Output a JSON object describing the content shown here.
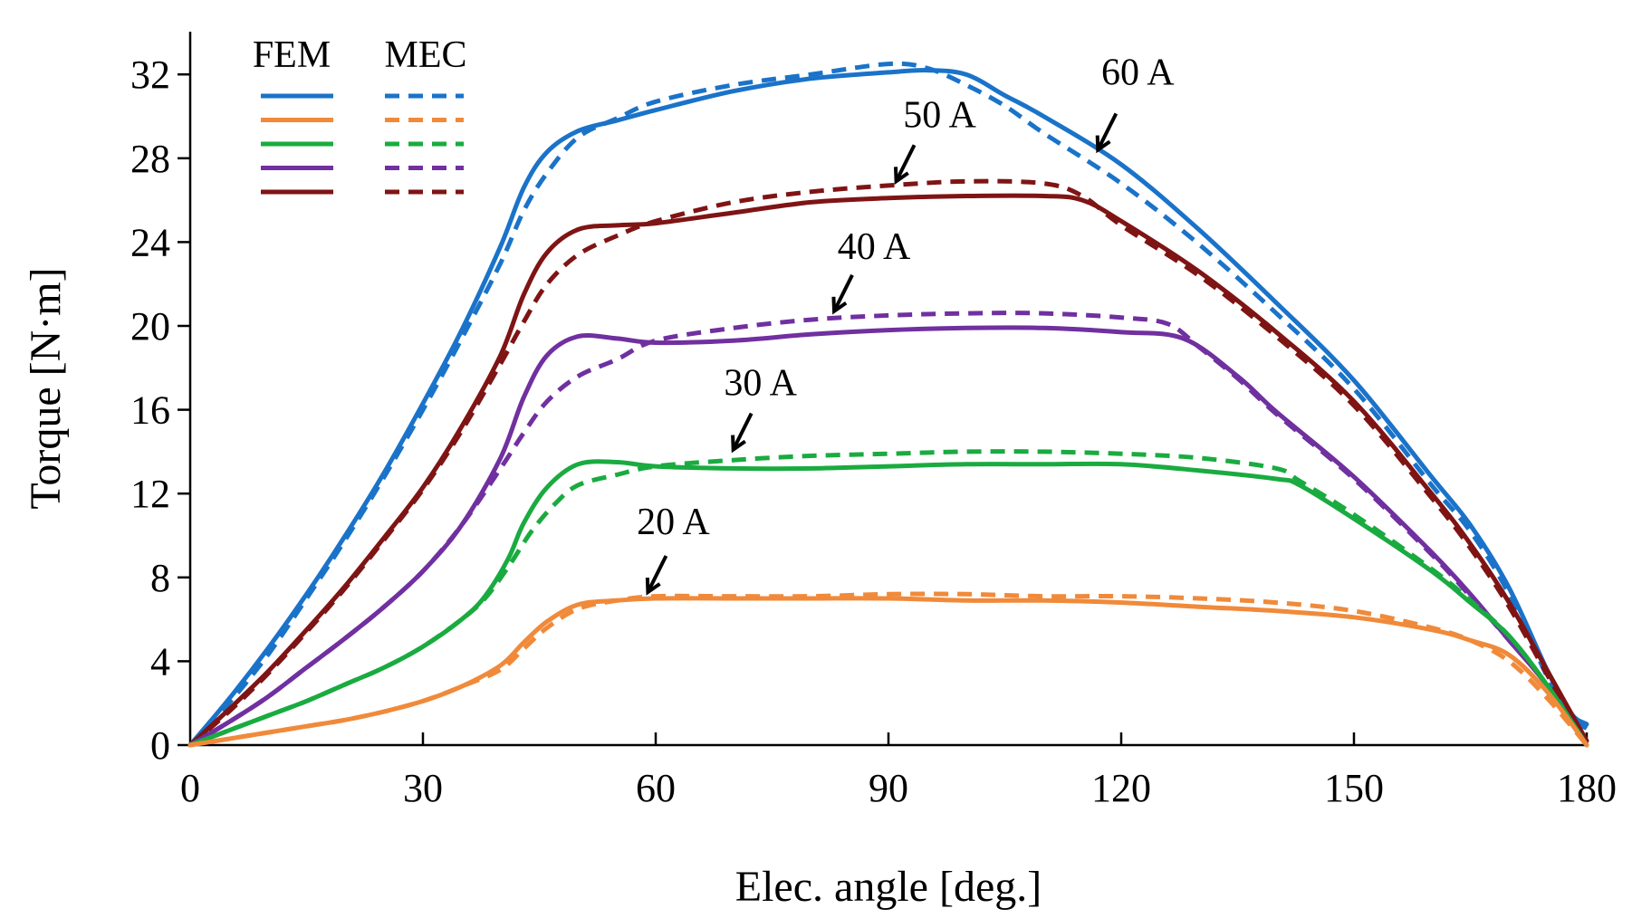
{
  "chart_data": {
    "type": "line",
    "title": "",
    "xlabel": "Elec. angle [deg.]",
    "ylabel": "Torque [N·m]",
    "xlim": [
      0,
      180
    ],
    "ylim": [
      0,
      34
    ],
    "xticks": [
      0,
      30,
      60,
      90,
      120,
      150,
      180
    ],
    "yticks": [
      0,
      4,
      8,
      12,
      16,
      20,
      24,
      28,
      32
    ],
    "grid": false,
    "legend": {
      "position": "top-left",
      "headers": [
        "FEM",
        "MEC"
      ]
    },
    "series": [
      {
        "name": "60 A FEM",
        "method": "FEM",
        "current": "60 A",
        "color": "#1a73c9",
        "style": "solid",
        "points": [
          [
            0,
            0
          ],
          [
            5,
            2.2
          ],
          [
            10,
            4.6
          ],
          [
            15,
            7.2
          ],
          [
            20,
            10
          ],
          [
            25,
            13
          ],
          [
            30,
            16.3
          ],
          [
            35,
            19.8
          ],
          [
            40,
            23.8
          ],
          [
            43,
            26.6
          ],
          [
            46,
            28.3
          ],
          [
            50,
            29.3
          ],
          [
            55,
            29.8
          ],
          [
            60,
            30.3
          ],
          [
            70,
            31.2
          ],
          [
            80,
            31.8
          ],
          [
            90,
            32.1
          ],
          [
            95,
            32.2
          ],
          [
            100,
            32
          ],
          [
            105,
            31
          ],
          [
            110,
            30
          ],
          [
            120,
            27.7
          ],
          [
            130,
            24.6
          ],
          [
            140,
            21.1
          ],
          [
            150,
            17.4
          ],
          [
            160,
            12.8
          ],
          [
            165,
            10.5
          ],
          [
            170,
            7.5
          ],
          [
            175,
            3.5
          ],
          [
            178,
            1.5
          ],
          [
            180,
            1
          ]
        ]
      },
      {
        "name": "60 A MEC",
        "method": "MEC",
        "current": "60 A",
        "color": "#1a73c9",
        "style": "dashed",
        "points": [
          [
            0,
            0
          ],
          [
            5,
            2
          ],
          [
            10,
            4.3
          ],
          [
            15,
            7
          ],
          [
            20,
            9.8
          ],
          [
            25,
            12.8
          ],
          [
            30,
            16
          ],
          [
            35,
            19.4
          ],
          [
            40,
            23
          ],
          [
            43,
            25.5
          ],
          [
            46,
            27.3
          ],
          [
            50,
            29
          ],
          [
            55,
            29.9
          ],
          [
            60,
            30.7
          ],
          [
            70,
            31.5
          ],
          [
            80,
            32
          ],
          [
            90,
            32.5
          ],
          [
            95,
            32.3
          ],
          [
            100,
            31.5
          ],
          [
            105,
            30.5
          ],
          [
            110,
            29.2
          ],
          [
            120,
            26.8
          ],
          [
            130,
            23.9
          ],
          [
            140,
            20.6
          ],
          [
            150,
            17
          ],
          [
            160,
            12.4
          ],
          [
            165,
            10.2
          ],
          [
            170,
            7.2
          ],
          [
            175,
            3.2
          ],
          [
            178,
            1.3
          ],
          [
            180,
            0.8
          ]
        ]
      },
      {
        "name": "50 A FEM",
        "method": "FEM",
        "current": "50 A",
        "color": "#7f1414",
        "style": "solid",
        "points": [
          [
            0,
            0
          ],
          [
            5,
            1.7
          ],
          [
            10,
            3.5
          ],
          [
            15,
            5.5
          ],
          [
            20,
            7.6
          ],
          [
            25,
            9.9
          ],
          [
            30,
            12.3
          ],
          [
            35,
            15.2
          ],
          [
            40,
            18.6
          ],
          [
            43,
            21.5
          ],
          [
            46,
            23.5
          ],
          [
            50,
            24.6
          ],
          [
            55,
            24.8
          ],
          [
            60,
            24.9
          ],
          [
            70,
            25.4
          ],
          [
            80,
            25.9
          ],
          [
            90,
            26.1
          ],
          [
            100,
            26.2
          ],
          [
            110,
            26.2
          ],
          [
            115,
            26
          ],
          [
            120,
            25
          ],
          [
            130,
            22.6
          ],
          [
            140,
            19.7
          ],
          [
            150,
            16.4
          ],
          [
            160,
            12
          ],
          [
            165,
            9.6
          ],
          [
            170,
            6.8
          ],
          [
            175,
            3.5
          ],
          [
            180,
            0.2
          ]
        ]
      },
      {
        "name": "50 A MEC",
        "method": "MEC",
        "current": "50 A",
        "color": "#7f1414",
        "style": "dashed",
        "points": [
          [
            0,
            0
          ],
          [
            5,
            1.6
          ],
          [
            10,
            3.4
          ],
          [
            15,
            5.4
          ],
          [
            20,
            7.5
          ],
          [
            25,
            9.8
          ],
          [
            30,
            12.2
          ],
          [
            35,
            15
          ],
          [
            40,
            18.2
          ],
          [
            43,
            20.2
          ],
          [
            46,
            22
          ],
          [
            50,
            23.4
          ],
          [
            55,
            24.3
          ],
          [
            60,
            25
          ],
          [
            70,
            25.9
          ],
          [
            80,
            26.4
          ],
          [
            90,
            26.7
          ],
          [
            100,
            26.9
          ],
          [
            110,
            26.8
          ],
          [
            115,
            26.2
          ],
          [
            120,
            24.8
          ],
          [
            130,
            22.4
          ],
          [
            140,
            19.5
          ],
          [
            150,
            16.2
          ],
          [
            160,
            11.8
          ],
          [
            165,
            9.4
          ],
          [
            170,
            6.6
          ],
          [
            175,
            3.3
          ],
          [
            180,
            0.1
          ]
        ]
      },
      {
        "name": "40 A FEM",
        "method": "FEM",
        "current": "40 A",
        "color": "#7030a0",
        "style": "solid",
        "points": [
          [
            0,
            0
          ],
          [
            5,
            1.1
          ],
          [
            10,
            2.3
          ],
          [
            15,
            3.7
          ],
          [
            20,
            5.1
          ],
          [
            25,
            6.6
          ],
          [
            30,
            8.3
          ],
          [
            35,
            10.5
          ],
          [
            40,
            13.7
          ],
          [
            43,
            16.6
          ],
          [
            46,
            18.6
          ],
          [
            50,
            19.5
          ],
          [
            55,
            19.4
          ],
          [
            60,
            19.2
          ],
          [
            70,
            19.3
          ],
          [
            80,
            19.6
          ],
          [
            90,
            19.8
          ],
          [
            100,
            19.9
          ],
          [
            110,
            19.9
          ],
          [
            120,
            19.7
          ],
          [
            128,
            19.4
          ],
          [
            135,
            17.6
          ],
          [
            140,
            15.9
          ],
          [
            150,
            12.8
          ],
          [
            160,
            9.2
          ],
          [
            165,
            7.2
          ],
          [
            170,
            5
          ],
          [
            175,
            2.8
          ],
          [
            180,
            0
          ]
        ]
      },
      {
        "name": "40 A MEC",
        "method": "MEC",
        "current": "40 A",
        "color": "#7030a0",
        "style": "dashed",
        "points": [
          [
            0,
            0
          ],
          [
            5,
            1.1
          ],
          [
            10,
            2.3
          ],
          [
            15,
            3.7
          ],
          [
            20,
            5.1
          ],
          [
            25,
            6.6
          ],
          [
            30,
            8.3
          ],
          [
            35,
            10.5
          ],
          [
            40,
            13.2
          ],
          [
            43,
            14.9
          ],
          [
            46,
            16.4
          ],
          [
            50,
            17.6
          ],
          [
            55,
            18.4
          ],
          [
            60,
            19.3
          ],
          [
            70,
            19.9
          ],
          [
            80,
            20.3
          ],
          [
            90,
            20.5
          ],
          [
            100,
            20.6
          ],
          [
            110,
            20.6
          ],
          [
            120,
            20.4
          ],
          [
            126,
            20.1
          ],
          [
            130,
            19
          ],
          [
            135,
            17.5
          ],
          [
            140,
            15.8
          ],
          [
            150,
            12.7
          ],
          [
            160,
            9.1
          ],
          [
            165,
            7.1
          ],
          [
            170,
            5
          ],
          [
            175,
            2.8
          ],
          [
            180,
            0
          ]
        ]
      },
      {
        "name": "30 A FEM",
        "method": "FEM",
        "current": "30 A",
        "color": "#1aab40",
        "style": "solid",
        "points": [
          [
            0,
            0
          ],
          [
            5,
            0.7
          ],
          [
            10,
            1.4
          ],
          [
            15,
            2.1
          ],
          [
            20,
            2.9
          ],
          [
            25,
            3.7
          ],
          [
            30,
            4.7
          ],
          [
            35,
            6
          ],
          [
            38,
            7.1
          ],
          [
            41,
            8.9
          ],
          [
            43,
            10.6
          ],
          [
            46,
            12.3
          ],
          [
            50,
            13.4
          ],
          [
            55,
            13.5
          ],
          [
            60,
            13.3
          ],
          [
            70,
            13.2
          ],
          [
            80,
            13.2
          ],
          [
            90,
            13.3
          ],
          [
            100,
            13.4
          ],
          [
            110,
            13.4
          ],
          [
            120,
            13.4
          ],
          [
            130,
            13.1
          ],
          [
            140,
            12.7
          ],
          [
            143,
            12.4
          ],
          [
            150,
            10.8
          ],
          [
            160,
            8.3
          ],
          [
            165,
            6.8
          ],
          [
            170,
            5.2
          ],
          [
            175,
            2.8
          ],
          [
            180,
            0
          ]
        ]
      },
      {
        "name": "30 A MEC",
        "method": "MEC",
        "current": "30 A",
        "color": "#1aab40",
        "style": "dashed",
        "points": [
          [
            0,
            0
          ],
          [
            5,
            0.7
          ],
          [
            10,
            1.4
          ],
          [
            15,
            2.1
          ],
          [
            20,
            2.9
          ],
          [
            25,
            3.7
          ],
          [
            30,
            4.7
          ],
          [
            35,
            6
          ],
          [
            38,
            7
          ],
          [
            41,
            8.5
          ],
          [
            44,
            10.2
          ],
          [
            47,
            11.5
          ],
          [
            50,
            12.4
          ],
          [
            55,
            12.9
          ],
          [
            60,
            13.3
          ],
          [
            70,
            13.6
          ],
          [
            80,
            13.8
          ],
          [
            90,
            13.9
          ],
          [
            100,
            14
          ],
          [
            110,
            14
          ],
          [
            120,
            13.9
          ],
          [
            130,
            13.7
          ],
          [
            140,
            13.2
          ],
          [
            143,
            12.6
          ],
          [
            150,
            11
          ],
          [
            160,
            8.4
          ],
          [
            165,
            6.9
          ],
          [
            170,
            5.2
          ],
          [
            175,
            2.8
          ],
          [
            180,
            0
          ]
        ]
      },
      {
        "name": "20 A FEM",
        "method": "FEM",
        "current": "20 A",
        "color": "#f08a3a",
        "style": "solid",
        "points": [
          [
            0,
            0
          ],
          [
            5,
            0.3
          ],
          [
            10,
            0.6
          ],
          [
            15,
            0.9
          ],
          [
            20,
            1.2
          ],
          [
            25,
            1.6
          ],
          [
            30,
            2.1
          ],
          [
            35,
            2.8
          ],
          [
            40,
            3.8
          ],
          [
            43,
            4.9
          ],
          [
            46,
            5.9
          ],
          [
            50,
            6.7
          ],
          [
            55,
            6.9
          ],
          [
            60,
            7
          ],
          [
            70,
            7
          ],
          [
            80,
            7
          ],
          [
            90,
            7
          ],
          [
            100,
            6.9
          ],
          [
            110,
            6.9
          ],
          [
            120,
            6.8
          ],
          [
            130,
            6.6
          ],
          [
            140,
            6.4
          ],
          [
            150,
            6.1
          ],
          [
            160,
            5.5
          ],
          [
            165,
            5
          ],
          [
            170,
            4.3
          ],
          [
            175,
            2.5
          ],
          [
            180,
            0
          ]
        ]
      },
      {
        "name": "20 A MEC",
        "method": "MEC",
        "current": "20 A",
        "color": "#f08a3a",
        "style": "dashed",
        "points": [
          [
            0,
            0
          ],
          [
            5,
            0.3
          ],
          [
            10,
            0.6
          ],
          [
            15,
            0.9
          ],
          [
            20,
            1.2
          ],
          [
            25,
            1.6
          ],
          [
            30,
            2.1
          ],
          [
            35,
            2.8
          ],
          [
            40,
            3.6
          ],
          [
            43,
            4.6
          ],
          [
            46,
            5.6
          ],
          [
            50,
            6.5
          ],
          [
            55,
            6.9
          ],
          [
            60,
            7.1
          ],
          [
            70,
            7.1
          ],
          [
            80,
            7.1
          ],
          [
            90,
            7.2
          ],
          [
            100,
            7.2
          ],
          [
            110,
            7.1
          ],
          [
            120,
            7.1
          ],
          [
            130,
            7
          ],
          [
            140,
            6.8
          ],
          [
            150,
            6.4
          ],
          [
            160,
            5.6
          ],
          [
            165,
            5
          ],
          [
            170,
            4
          ],
          [
            175,
            2.2
          ],
          [
            180,
            0
          ]
        ]
      }
    ],
    "legend_order": [
      "60 A",
      "20 A",
      "30 A",
      "40 A",
      "50 A"
    ],
    "annotations": [
      {
        "text": "60 A",
        "target": [
          117,
          28.4
        ]
      },
      {
        "text": "50 A",
        "target": [
          91,
          26.9
        ]
      },
      {
        "text": "40 A",
        "target": [
          83,
          20.7
        ]
      },
      {
        "text": "30 A",
        "target": [
          70,
          14.1
        ]
      },
      {
        "text": "20 A",
        "target": [
          59,
          7.3
        ]
      }
    ]
  }
}
